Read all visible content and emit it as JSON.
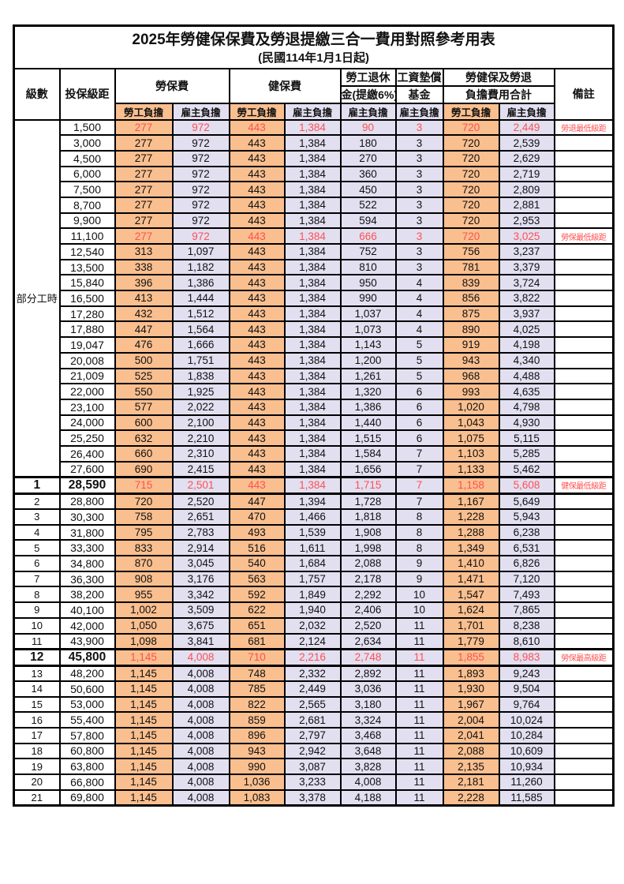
{
  "title": "2025年勞健保保費及勞退提繳三合一費用對照參考用表",
  "subtitle": "(民國114年1月1日起)",
  "header": {
    "level": "級數",
    "bracket": "投保級距",
    "labor_ins": "勞保費",
    "health_ins": "健保費",
    "pension_line1": "勞工退休",
    "pension_line2": "金(提繳6%)",
    "fund_line1": "工資墊償",
    "fund_line2": "基金",
    "total_line1": "勞健保及勞退",
    "total_line2": "負擔費用合計",
    "remark": "備註",
    "employee": "勞工負擔",
    "employer": "雇主負擔"
  },
  "colors": {
    "employee_bg": "#FABF8F",
    "employer_bg": "#E2DFF1",
    "highlight_red": "#FF5050",
    "border": "#000000"
  },
  "group": {
    "label": "部分工時",
    "rowspan": 23
  },
  "rows": [
    {
      "level": "",
      "bracket": "1,500",
      "v": [
        "277",
        "972",
        "443",
        "1,384",
        "90",
        "3",
        "720",
        "2,449"
      ],
      "remark": "勞退最低級距",
      "red": true,
      "em": false
    },
    {
      "level": "",
      "bracket": "3,000",
      "v": [
        "277",
        "972",
        "443",
        "1,384",
        "180",
        "3",
        "720",
        "2,539"
      ],
      "remark": "",
      "red": false,
      "em": false
    },
    {
      "level": "",
      "bracket": "4,500",
      "v": [
        "277",
        "972",
        "443",
        "1,384",
        "270",
        "3",
        "720",
        "2,629"
      ],
      "remark": "",
      "red": false,
      "em": false
    },
    {
      "level": "",
      "bracket": "6,000",
      "v": [
        "277",
        "972",
        "443",
        "1,384",
        "360",
        "3",
        "720",
        "2,719"
      ],
      "remark": "",
      "red": false,
      "em": false
    },
    {
      "level": "",
      "bracket": "7,500",
      "v": [
        "277",
        "972",
        "443",
        "1,384",
        "450",
        "3",
        "720",
        "2,809"
      ],
      "remark": "",
      "red": false,
      "em": false
    },
    {
      "level": "",
      "bracket": "8,700",
      "v": [
        "277",
        "972",
        "443",
        "1,384",
        "522",
        "3",
        "720",
        "2,881"
      ],
      "remark": "",
      "red": false,
      "em": false
    },
    {
      "level": "",
      "bracket": "9,900",
      "v": [
        "277",
        "972",
        "443",
        "1,384",
        "594",
        "3",
        "720",
        "2,953"
      ],
      "remark": "",
      "red": false,
      "em": false
    },
    {
      "level": "",
      "bracket": "11,100",
      "v": [
        "277",
        "972",
        "443",
        "1,384",
        "666",
        "3",
        "720",
        "3,025"
      ],
      "remark": "勞保最低級距",
      "red": true,
      "em": false
    },
    {
      "level": "",
      "bracket": "12,540",
      "v": [
        "313",
        "1,097",
        "443",
        "1,384",
        "752",
        "3",
        "756",
        "3,237"
      ],
      "remark": "",
      "red": false,
      "em": false
    },
    {
      "level": "",
      "bracket": "13,500",
      "v": [
        "338",
        "1,182",
        "443",
        "1,384",
        "810",
        "3",
        "781",
        "3,379"
      ],
      "remark": "",
      "red": false,
      "em": false
    },
    {
      "level": "",
      "bracket": "15,840",
      "v": [
        "396",
        "1,386",
        "443",
        "1,384",
        "950",
        "4",
        "839",
        "3,724"
      ],
      "remark": "",
      "red": false,
      "em": false
    },
    {
      "level": "",
      "bracket": "16,500",
      "v": [
        "413",
        "1,444",
        "443",
        "1,384",
        "990",
        "4",
        "856",
        "3,822"
      ],
      "remark": "",
      "red": false,
      "em": false
    },
    {
      "level": "",
      "bracket": "17,280",
      "v": [
        "432",
        "1,512",
        "443",
        "1,384",
        "1,037",
        "4",
        "875",
        "3,937"
      ],
      "remark": "",
      "red": false,
      "em": false
    },
    {
      "level": "",
      "bracket": "17,880",
      "v": [
        "447",
        "1,564",
        "443",
        "1,384",
        "1,073",
        "4",
        "890",
        "4,025"
      ],
      "remark": "",
      "red": false,
      "em": false
    },
    {
      "level": "",
      "bracket": "19,047",
      "v": [
        "476",
        "1,666",
        "443",
        "1,384",
        "1,143",
        "5",
        "919",
        "4,198"
      ],
      "remark": "",
      "red": false,
      "em": false
    },
    {
      "level": "",
      "bracket": "20,008",
      "v": [
        "500",
        "1,751",
        "443",
        "1,384",
        "1,200",
        "5",
        "943",
        "4,340"
      ],
      "remark": "",
      "red": false,
      "em": false
    },
    {
      "level": "",
      "bracket": "21,009",
      "v": [
        "525",
        "1,838",
        "443",
        "1,384",
        "1,261",
        "5",
        "968",
        "4,488"
      ],
      "remark": "",
      "red": false,
      "em": false
    },
    {
      "level": "",
      "bracket": "22,000",
      "v": [
        "550",
        "1,925",
        "443",
        "1,384",
        "1,320",
        "6",
        "993",
        "4,635"
      ],
      "remark": "",
      "red": false,
      "em": false
    },
    {
      "level": "",
      "bracket": "23,100",
      "v": [
        "577",
        "2,022",
        "443",
        "1,384",
        "1,386",
        "6",
        "1,020",
        "4,798"
      ],
      "remark": "",
      "red": false,
      "em": false
    },
    {
      "level": "",
      "bracket": "24,000",
      "v": [
        "600",
        "2,100",
        "443",
        "1,384",
        "1,440",
        "6",
        "1,043",
        "4,930"
      ],
      "remark": "",
      "red": false,
      "em": false
    },
    {
      "level": "",
      "bracket": "25,250",
      "v": [
        "632",
        "2,210",
        "443",
        "1,384",
        "1,515",
        "6",
        "1,075",
        "5,115"
      ],
      "remark": "",
      "red": false,
      "em": false
    },
    {
      "level": "",
      "bracket": "26,400",
      "v": [
        "660",
        "2,310",
        "443",
        "1,384",
        "1,584",
        "7",
        "1,103",
        "5,285"
      ],
      "remark": "",
      "red": false,
      "em": false
    },
    {
      "level": "",
      "bracket": "27,600",
      "v": [
        "690",
        "2,415",
        "443",
        "1,384",
        "1,656",
        "7",
        "1,133",
        "5,462"
      ],
      "remark": "",
      "red": false,
      "em": false
    },
    {
      "level": "1",
      "bracket": "28,590",
      "v": [
        "715",
        "2,501",
        "443",
        "1,384",
        "1,715",
        "7",
        "1,158",
        "5,608"
      ],
      "remark": "健保最低級距",
      "red": true,
      "em": true
    },
    {
      "level": "2",
      "bracket": "28,800",
      "v": [
        "720",
        "2,520",
        "447",
        "1,394",
        "1,728",
        "7",
        "1,167",
        "5,649"
      ],
      "remark": "",
      "red": false,
      "em": false
    },
    {
      "level": "3",
      "bracket": "30,300",
      "v": [
        "758",
        "2,651",
        "470",
        "1,466",
        "1,818",
        "8",
        "1,228",
        "5,943"
      ],
      "remark": "",
      "red": false,
      "em": false
    },
    {
      "level": "4",
      "bracket": "31,800",
      "v": [
        "795",
        "2,783",
        "493",
        "1,539",
        "1,908",
        "8",
        "1,288",
        "6,238"
      ],
      "remark": "",
      "red": false,
      "em": false
    },
    {
      "level": "5",
      "bracket": "33,300",
      "v": [
        "833",
        "2,914",
        "516",
        "1,611",
        "1,998",
        "8",
        "1,349",
        "6,531"
      ],
      "remark": "",
      "red": false,
      "em": false
    },
    {
      "level": "6",
      "bracket": "34,800",
      "v": [
        "870",
        "3,045",
        "540",
        "1,684",
        "2,088",
        "9",
        "1,410",
        "6,826"
      ],
      "remark": "",
      "red": false,
      "em": false
    },
    {
      "level": "7",
      "bracket": "36,300",
      "v": [
        "908",
        "3,176",
        "563",
        "1,757",
        "2,178",
        "9",
        "1,471",
        "7,120"
      ],
      "remark": "",
      "red": false,
      "em": false
    },
    {
      "level": "8",
      "bracket": "38,200",
      "v": [
        "955",
        "3,342",
        "592",
        "1,849",
        "2,292",
        "10",
        "1,547",
        "7,493"
      ],
      "remark": "",
      "red": false,
      "em": false
    },
    {
      "level": "9",
      "bracket": "40,100",
      "v": [
        "1,002",
        "3,509",
        "622",
        "1,940",
        "2,406",
        "10",
        "1,624",
        "7,865"
      ],
      "remark": "",
      "red": false,
      "em": false
    },
    {
      "level": "10",
      "bracket": "42,000",
      "v": [
        "1,050",
        "3,675",
        "651",
        "2,032",
        "2,520",
        "11",
        "1,701",
        "8,238"
      ],
      "remark": "",
      "red": false,
      "em": false
    },
    {
      "level": "11",
      "bracket": "43,900",
      "v": [
        "1,098",
        "3,841",
        "681",
        "2,124",
        "2,634",
        "11",
        "1,779",
        "8,610"
      ],
      "remark": "",
      "red": false,
      "em": false
    },
    {
      "level": "12",
      "bracket": "45,800",
      "v": [
        "1,145",
        "4,008",
        "710",
        "2,216",
        "2,748",
        "11",
        "1,855",
        "8,983"
      ],
      "remark": "勞保最高級距",
      "red": true,
      "em": true
    },
    {
      "level": "13",
      "bracket": "48,200",
      "v": [
        "1,145",
        "4,008",
        "748",
        "2,332",
        "2,892",
        "11",
        "1,893",
        "9,243"
      ],
      "remark": "",
      "red": false,
      "em": false
    },
    {
      "level": "14",
      "bracket": "50,600",
      "v": [
        "1,145",
        "4,008",
        "785",
        "2,449",
        "3,036",
        "11",
        "1,930",
        "9,504"
      ],
      "remark": "",
      "red": false,
      "em": false
    },
    {
      "level": "15",
      "bracket": "53,000",
      "v": [
        "1,145",
        "4,008",
        "822",
        "2,565",
        "3,180",
        "11",
        "1,967",
        "9,764"
      ],
      "remark": "",
      "red": false,
      "em": false
    },
    {
      "level": "16",
      "bracket": "55,400",
      "v": [
        "1,145",
        "4,008",
        "859",
        "2,681",
        "3,324",
        "11",
        "2,004",
        "10,024"
      ],
      "remark": "",
      "red": false,
      "em": false
    },
    {
      "level": "17",
      "bracket": "57,800",
      "v": [
        "1,145",
        "4,008",
        "896",
        "2,797",
        "3,468",
        "11",
        "2,041",
        "10,284"
      ],
      "remark": "",
      "red": false,
      "em": false
    },
    {
      "level": "18",
      "bracket": "60,800",
      "v": [
        "1,145",
        "4,008",
        "943",
        "2,942",
        "3,648",
        "11",
        "2,088",
        "10,609"
      ],
      "remark": "",
      "red": false,
      "em": false
    },
    {
      "level": "19",
      "bracket": "63,800",
      "v": [
        "1,145",
        "4,008",
        "990",
        "3,087",
        "3,828",
        "11",
        "2,135",
        "10,934"
      ],
      "remark": "",
      "red": false,
      "em": false
    },
    {
      "level": "20",
      "bracket": "66,800",
      "v": [
        "1,145",
        "4,008",
        "1,036",
        "3,233",
        "4,008",
        "11",
        "2,181",
        "11,260"
      ],
      "remark": "",
      "red": false,
      "em": false
    },
    {
      "level": "21",
      "bracket": "69,800",
      "v": [
        "1,145",
        "4,008",
        "1,083",
        "3,378",
        "4,188",
        "11",
        "2,228",
        "11,585"
      ],
      "remark": "",
      "red": false,
      "em": false
    }
  ]
}
